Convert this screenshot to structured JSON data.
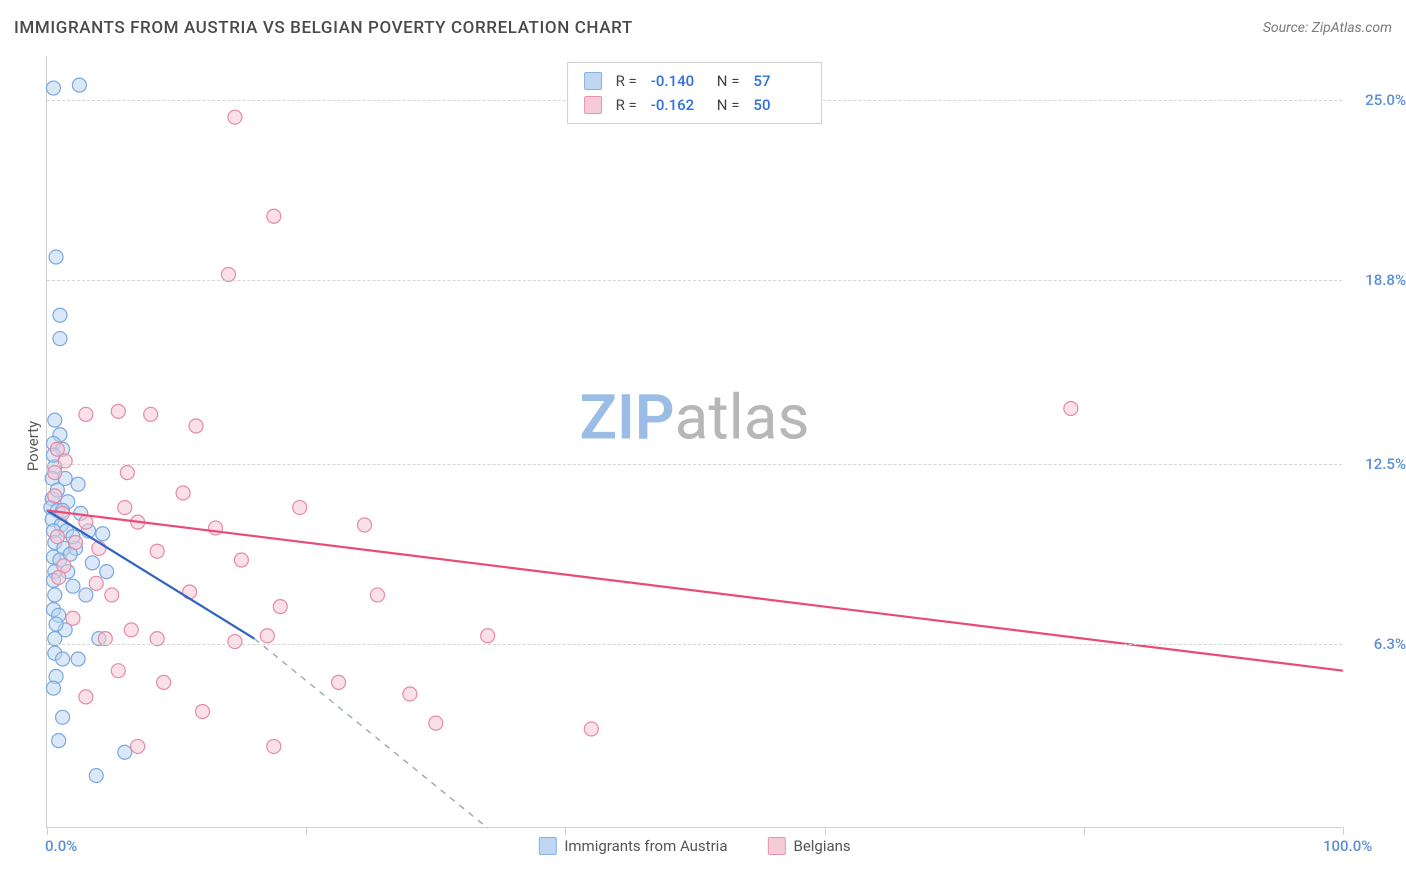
{
  "header": {
    "title": "IMMIGRANTS FROM AUSTRIA VS BELGIAN POVERTY CORRELATION CHART",
    "source_prefix": "Source: ",
    "source_name": "ZipAtlas.com"
  },
  "watermark": {
    "left": "ZIP",
    "right": "atlas",
    "left_color": "#9abce5",
    "right_color": "#b7b7b7"
  },
  "chart": {
    "type": "scatter",
    "background_color": "#ffffff",
    "grid_color": "#d5d5d5",
    "axis_color": "#cfcfcf",
    "ylabel": "Poverty",
    "ylabel_color": "#5a5a5a",
    "ylabel_fontsize": 15,
    "xlim": [
      0,
      100
    ],
    "ylim": [
      0,
      26.5
    ],
    "x_ticks": [
      0,
      20,
      40,
      60,
      80,
      100
    ],
    "x_tick_labels_shown": {
      "0": "0.0%",
      "100": "100.0%"
    },
    "x_label_color": "#5b8fd6",
    "y_gridlines": [
      6.3,
      12.5,
      18.8,
      25.0
    ],
    "y_tick_labels": [
      "6.3%",
      "12.5%",
      "18.8%",
      "25.0%"
    ],
    "y_label_color": "#5b8fd6",
    "marker_radius": 7,
    "marker_stroke_width": 1.2,
    "marker_fill_opacity": 0.18,
    "series": [
      {
        "key": "austria",
        "label": "Immigrants from Austria",
        "color_stroke": "#7aa8de",
        "color_fill": "#b9d3f0",
        "trend_color": "#2f64c1",
        "R": "-0.140",
        "N": "57",
        "points": [
          [
            0.5,
            25.4
          ],
          [
            2.5,
            25.5
          ],
          [
            0.7,
            19.6
          ],
          [
            1.0,
            17.6
          ],
          [
            1.0,
            16.8
          ],
          [
            0.6,
            14.0
          ],
          [
            1.0,
            13.5
          ],
          [
            0.5,
            13.2
          ],
          [
            1.2,
            13.0
          ],
          [
            0.6,
            12.4
          ],
          [
            0.4,
            12.0
          ],
          [
            1.4,
            12.0
          ],
          [
            2.4,
            11.8
          ],
          [
            0.4,
            11.3
          ],
          [
            1.6,
            11.2
          ],
          [
            0.3,
            11.0
          ],
          [
            0.8,
            10.9
          ],
          [
            1.2,
            10.9
          ],
          [
            2.6,
            10.8
          ],
          [
            0.4,
            10.6
          ],
          [
            1.1,
            10.4
          ],
          [
            0.5,
            10.2
          ],
          [
            1.5,
            10.2
          ],
          [
            3.2,
            10.2
          ],
          [
            4.3,
            10.1
          ],
          [
            0.6,
            9.8
          ],
          [
            1.3,
            9.6
          ],
          [
            2.2,
            9.6
          ],
          [
            0.5,
            9.3
          ],
          [
            1.0,
            9.2
          ],
          [
            3.5,
            9.1
          ],
          [
            0.6,
            8.8
          ],
          [
            1.6,
            8.8
          ],
          [
            4.6,
            8.8
          ],
          [
            0.5,
            8.5
          ],
          [
            2.0,
            8.3
          ],
          [
            0.6,
            8.0
          ],
          [
            3.0,
            8.0
          ],
          [
            0.5,
            7.5
          ],
          [
            0.9,
            7.3
          ],
          [
            1.4,
            6.8
          ],
          [
            0.6,
            6.5
          ],
          [
            4.0,
            6.5
          ],
          [
            0.6,
            6.0
          ],
          [
            1.2,
            5.8
          ],
          [
            2.4,
            5.8
          ],
          [
            0.7,
            5.2
          ],
          [
            0.5,
            4.8
          ],
          [
            1.2,
            3.8
          ],
          [
            0.9,
            3.0
          ],
          [
            6.0,
            2.6
          ],
          [
            3.8,
            1.8
          ],
          [
            0.5,
            12.8
          ],
          [
            0.8,
            11.6
          ],
          [
            2.0,
            10.0
          ],
          [
            1.8,
            9.4
          ],
          [
            0.7,
            7.0
          ]
        ],
        "trend_solid": {
          "x1": 0,
          "y1": 10.9,
          "x2": 16,
          "y2": 6.5
        },
        "trend_dashed": {
          "x1": 16,
          "y1": 6.5,
          "x2": 34,
          "y2": 0
        }
      },
      {
        "key": "belgians",
        "label": "Belgians",
        "color_stroke": "#e68aa4",
        "color_fill": "#f6c6d4",
        "trend_color": "#e94b77",
        "R": "-0.162",
        "N": "50",
        "points": [
          [
            14.5,
            24.4
          ],
          [
            17.5,
            21.0
          ],
          [
            14.0,
            19.0
          ],
          [
            3.0,
            14.2
          ],
          [
            5.5,
            14.3
          ],
          [
            8.0,
            14.2
          ],
          [
            11.5,
            13.8
          ],
          [
            79.0,
            14.4
          ],
          [
            0.8,
            13.0
          ],
          [
            1.4,
            12.6
          ],
          [
            0.6,
            12.2
          ],
          [
            6.0,
            11.0
          ],
          [
            10.5,
            11.5
          ],
          [
            19.5,
            11.0
          ],
          [
            1.2,
            10.8
          ],
          [
            3.0,
            10.5
          ],
          [
            7.0,
            10.5
          ],
          [
            13.0,
            10.3
          ],
          [
            24.5,
            10.4
          ],
          [
            0.8,
            10.0
          ],
          [
            4.0,
            9.6
          ],
          [
            8.5,
            9.5
          ],
          [
            15.0,
            9.2
          ],
          [
            1.3,
            9.0
          ],
          [
            5.0,
            8.0
          ],
          [
            11.0,
            8.1
          ],
          [
            18.0,
            7.6
          ],
          [
            25.5,
            8.0
          ],
          [
            2.0,
            7.2
          ],
          [
            6.5,
            6.8
          ],
          [
            4.5,
            6.5
          ],
          [
            8.5,
            6.5
          ],
          [
            14.5,
            6.4
          ],
          [
            17.0,
            6.6
          ],
          [
            34.0,
            6.6
          ],
          [
            5.5,
            5.4
          ],
          [
            9.0,
            5.0
          ],
          [
            22.5,
            5.0
          ],
          [
            28.0,
            4.6
          ],
          [
            3.0,
            4.5
          ],
          [
            12.0,
            4.0
          ],
          [
            30.0,
            3.6
          ],
          [
            42.0,
            3.4
          ],
          [
            7.0,
            2.8
          ],
          [
            17.5,
            2.8
          ],
          [
            0.6,
            11.4
          ],
          [
            2.2,
            9.8
          ],
          [
            0.9,
            8.6
          ],
          [
            3.8,
            8.4
          ],
          [
            6.2,
            12.2
          ]
        ],
        "trend_solid": {
          "x1": 0,
          "y1": 10.9,
          "x2": 100,
          "y2": 5.4
        }
      }
    ],
    "legend_top": {
      "border_color": "#cfcfcf",
      "R_label": "R =",
      "N_label": "N =",
      "value_color": "#2f6fe0"
    },
    "legend_bottom_color": "#555555"
  }
}
